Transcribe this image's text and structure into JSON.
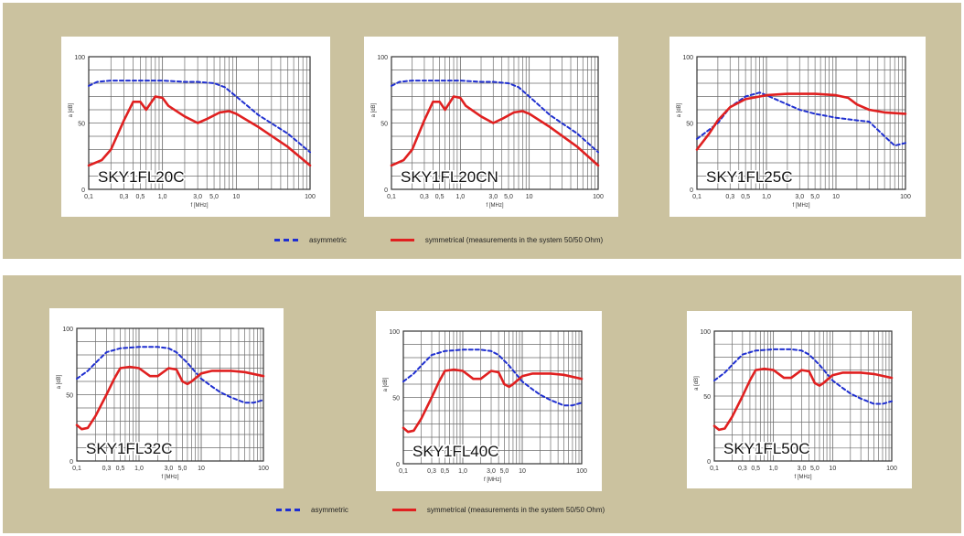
{
  "colors": {
    "background": "#cbc29f",
    "asymmetric": "#1f2fd0",
    "symmetrical": "#e02020",
    "grid": "#666666"
  },
  "legend": {
    "asymmetric_label": "asymmetric",
    "symmetrical_label": "symmetrical (measurements in the system 50/50 Ohm)"
  },
  "chart_data": [
    {
      "type": "line",
      "label": "SKY1FL20C",
      "xlabel": "f [MHz]",
      "ylabel": "a [dB]",
      "xscale": "log",
      "xlim": [
        0.1,
        100
      ],
      "ylim": [
        0,
        100
      ],
      "xticks": [
        "0,1",
        "0,3",
        "0,5",
        "1,0",
        "3,0",
        "5,0",
        "10",
        "100"
      ],
      "yticks": [
        "0",
        "50",
        "100"
      ],
      "series": [
        {
          "name": "asymmetric",
          "style": "dashed",
          "x": [
            0.1,
            0.13,
            0.2,
            0.5,
            1,
            2,
            3,
            5,
            7,
            10,
            20,
            50,
            100
          ],
          "y": [
            78,
            81,
            82,
            82,
            82,
            81,
            81,
            80,
            77,
            70,
            56,
            42,
            28
          ]
        },
        {
          "name": "symmetrical",
          "style": "solid",
          "x": [
            0.1,
            0.15,
            0.2,
            0.3,
            0.4,
            0.5,
            0.6,
            0.8,
            1,
            1.2,
            2,
            3,
            4,
            6,
            8,
            10,
            20,
            50,
            100
          ],
          "y": [
            18,
            22,
            30,
            52,
            66,
            66,
            60,
            70,
            69,
            63,
            55,
            50,
            53,
            58,
            59,
            57,
            47,
            32,
            18
          ]
        }
      ]
    },
    {
      "type": "line",
      "label": "SKY1FL20CN",
      "xlabel": "f [MHz]",
      "ylabel": "a [dB]",
      "xscale": "log",
      "xlim": [
        0.1,
        100
      ],
      "ylim": [
        0,
        100
      ],
      "xticks": [
        "0,1",
        "0,3",
        "0,5",
        "1,0",
        "3,0",
        "5,0",
        "10",
        "100"
      ],
      "yticks": [
        "0",
        "50",
        "100"
      ],
      "series": [
        {
          "name": "asymmetric",
          "style": "dashed",
          "x": [
            0.1,
            0.13,
            0.2,
            0.5,
            1,
            2,
            3,
            5,
            7,
            10,
            20,
            50,
            100
          ],
          "y": [
            78,
            81,
            82,
            82,
            82,
            81,
            81,
            80,
            77,
            70,
            56,
            42,
            28
          ]
        },
        {
          "name": "symmetrical",
          "style": "solid",
          "x": [
            0.1,
            0.15,
            0.2,
            0.3,
            0.4,
            0.5,
            0.6,
            0.8,
            1,
            1.2,
            2,
            3,
            4,
            6,
            8,
            10,
            20,
            50,
            100
          ],
          "y": [
            18,
            22,
            30,
            52,
            66,
            66,
            60,
            70,
            69,
            63,
            55,
            50,
            53,
            58,
            59,
            57,
            47,
            32,
            18
          ]
        }
      ]
    },
    {
      "type": "line",
      "label": "SKY1FL25C",
      "xlabel": "f [MHz]",
      "ylabel": "a [dB]",
      "xscale": "log",
      "xlim": [
        0.1,
        100
      ],
      "ylim": [
        0,
        100
      ],
      "xticks": [
        "0,1",
        "0,3",
        "0,5",
        "1,0",
        "3,0",
        "5,0",
        "10",
        "100"
      ],
      "yticks": [
        "0",
        "50",
        "100"
      ],
      "series": [
        {
          "name": "asymmetric",
          "style": "dashed",
          "x": [
            0.1,
            0.15,
            0.2,
            0.3,
            0.5,
            0.8,
            1,
            2,
            3,
            5,
            10,
            20,
            30,
            50,
            70,
            100
          ],
          "y": [
            38,
            45,
            50,
            62,
            70,
            73,
            71,
            64,
            60,
            57,
            54,
            52,
            51,
            40,
            33,
            35
          ]
        },
        {
          "name": "symmetrical",
          "style": "solid",
          "x": [
            0.1,
            0.15,
            0.2,
            0.3,
            0.5,
            1,
            2,
            5,
            10,
            15,
            20,
            30,
            50,
            100
          ],
          "y": [
            30,
            42,
            52,
            62,
            68,
            71,
            72,
            72,
            71,
            69,
            64,
            60,
            58,
            57
          ]
        }
      ]
    },
    {
      "type": "line",
      "label": "SKY1FL32C",
      "xlabel": "f [MHz]",
      "ylabel": "a [dB]",
      "xscale": "log",
      "xlim": [
        0.1,
        100
      ],
      "ylim": [
        0,
        100
      ],
      "xticks": [
        "0,1",
        "0,3",
        "0,5",
        "1,0",
        "3,0",
        "5,0",
        "10",
        "100"
      ],
      "yticks": [
        "0",
        "50",
        "100"
      ],
      "series": [
        {
          "name": "asymmetric",
          "style": "dashed",
          "x": [
            0.1,
            0.15,
            0.2,
            0.3,
            0.5,
            1,
            2,
            3,
            4,
            6,
            10,
            15,
            20,
            30,
            50,
            70,
            100
          ],
          "y": [
            62,
            68,
            74,
            82,
            85,
            86,
            86,
            85,
            82,
            74,
            62,
            56,
            52,
            48,
            44,
            44,
            46
          ]
        },
        {
          "name": "symmetrical",
          "style": "solid",
          "x": [
            0.1,
            0.12,
            0.15,
            0.2,
            0.3,
            0.4,
            0.5,
            0.7,
            1,
            1.5,
            2,
            3,
            4,
            5,
            6,
            7,
            10,
            15,
            20,
            30,
            50,
            100
          ],
          "y": [
            27,
            24,
            25,
            34,
            50,
            62,
            70,
            71,
            70,
            64,
            64,
            70,
            69,
            60,
            58,
            60,
            66,
            68,
            68,
            68,
            67,
            64
          ]
        }
      ]
    },
    {
      "type": "line",
      "label": "SKY1FL40C",
      "xlabel": "f [MHz]",
      "ylabel": "a [dB]",
      "xscale": "log",
      "xlim": [
        0.1,
        100
      ],
      "ylim": [
        0,
        100
      ],
      "xticks": [
        "0,1",
        "0,3",
        "0,5",
        "1,0",
        "3,0",
        "5,0",
        "10",
        "100"
      ],
      "yticks": [
        "0",
        "50",
        "100"
      ],
      "series": [
        {
          "name": "asymmetric",
          "style": "dashed",
          "x": [
            0.1,
            0.15,
            0.2,
            0.3,
            0.5,
            1,
            2,
            3,
            4,
            6,
            10,
            15,
            20,
            30,
            50,
            70,
            100
          ],
          "y": [
            62,
            68,
            74,
            82,
            85,
            86,
            86,
            85,
            82,
            74,
            62,
            56,
            52,
            48,
            44,
            44,
            46
          ]
        },
        {
          "name": "symmetrical",
          "style": "solid",
          "x": [
            0.1,
            0.12,
            0.15,
            0.2,
            0.3,
            0.4,
            0.5,
            0.7,
            1,
            1.5,
            2,
            3,
            4,
            5,
            6,
            7,
            10,
            15,
            20,
            30,
            50,
            100
          ],
          "y": [
            27,
            24,
            25,
            34,
            50,
            62,
            70,
            71,
            70,
            64,
            64,
            70,
            69,
            60,
            58,
            60,
            66,
            68,
            68,
            68,
            67,
            64
          ]
        }
      ]
    },
    {
      "type": "line",
      "label": "SKY1FL50C",
      "xlabel": "f [MHz]",
      "ylabel": "a [dB]",
      "xscale": "log",
      "xlim": [
        0.1,
        100
      ],
      "ylim": [
        0,
        100
      ],
      "xticks": [
        "0,1",
        "0,3",
        "0,5",
        "1,0",
        "3,0",
        "5,0",
        "10",
        "100"
      ],
      "yticks": [
        "0",
        "50",
        "100"
      ],
      "series": [
        {
          "name": "asymmetric",
          "style": "dashed",
          "x": [
            0.1,
            0.15,
            0.2,
            0.3,
            0.5,
            1,
            2,
            3,
            4,
            6,
            10,
            15,
            20,
            30,
            50,
            70,
            100
          ],
          "y": [
            62,
            68,
            74,
            82,
            85,
            86,
            86,
            85,
            82,
            74,
            62,
            56,
            52,
            48,
            44,
            44,
            46
          ]
        },
        {
          "name": "symmetrical",
          "style": "solid",
          "x": [
            0.1,
            0.12,
            0.15,
            0.2,
            0.3,
            0.4,
            0.5,
            0.7,
            1,
            1.5,
            2,
            3,
            4,
            5,
            6,
            7,
            10,
            15,
            20,
            30,
            50,
            100
          ],
          "y": [
            27,
            24,
            25,
            34,
            50,
            62,
            70,
            71,
            70,
            64,
            64,
            70,
            69,
            60,
            58,
            60,
            66,
            68,
            68,
            68,
            67,
            64
          ]
        }
      ]
    }
  ]
}
